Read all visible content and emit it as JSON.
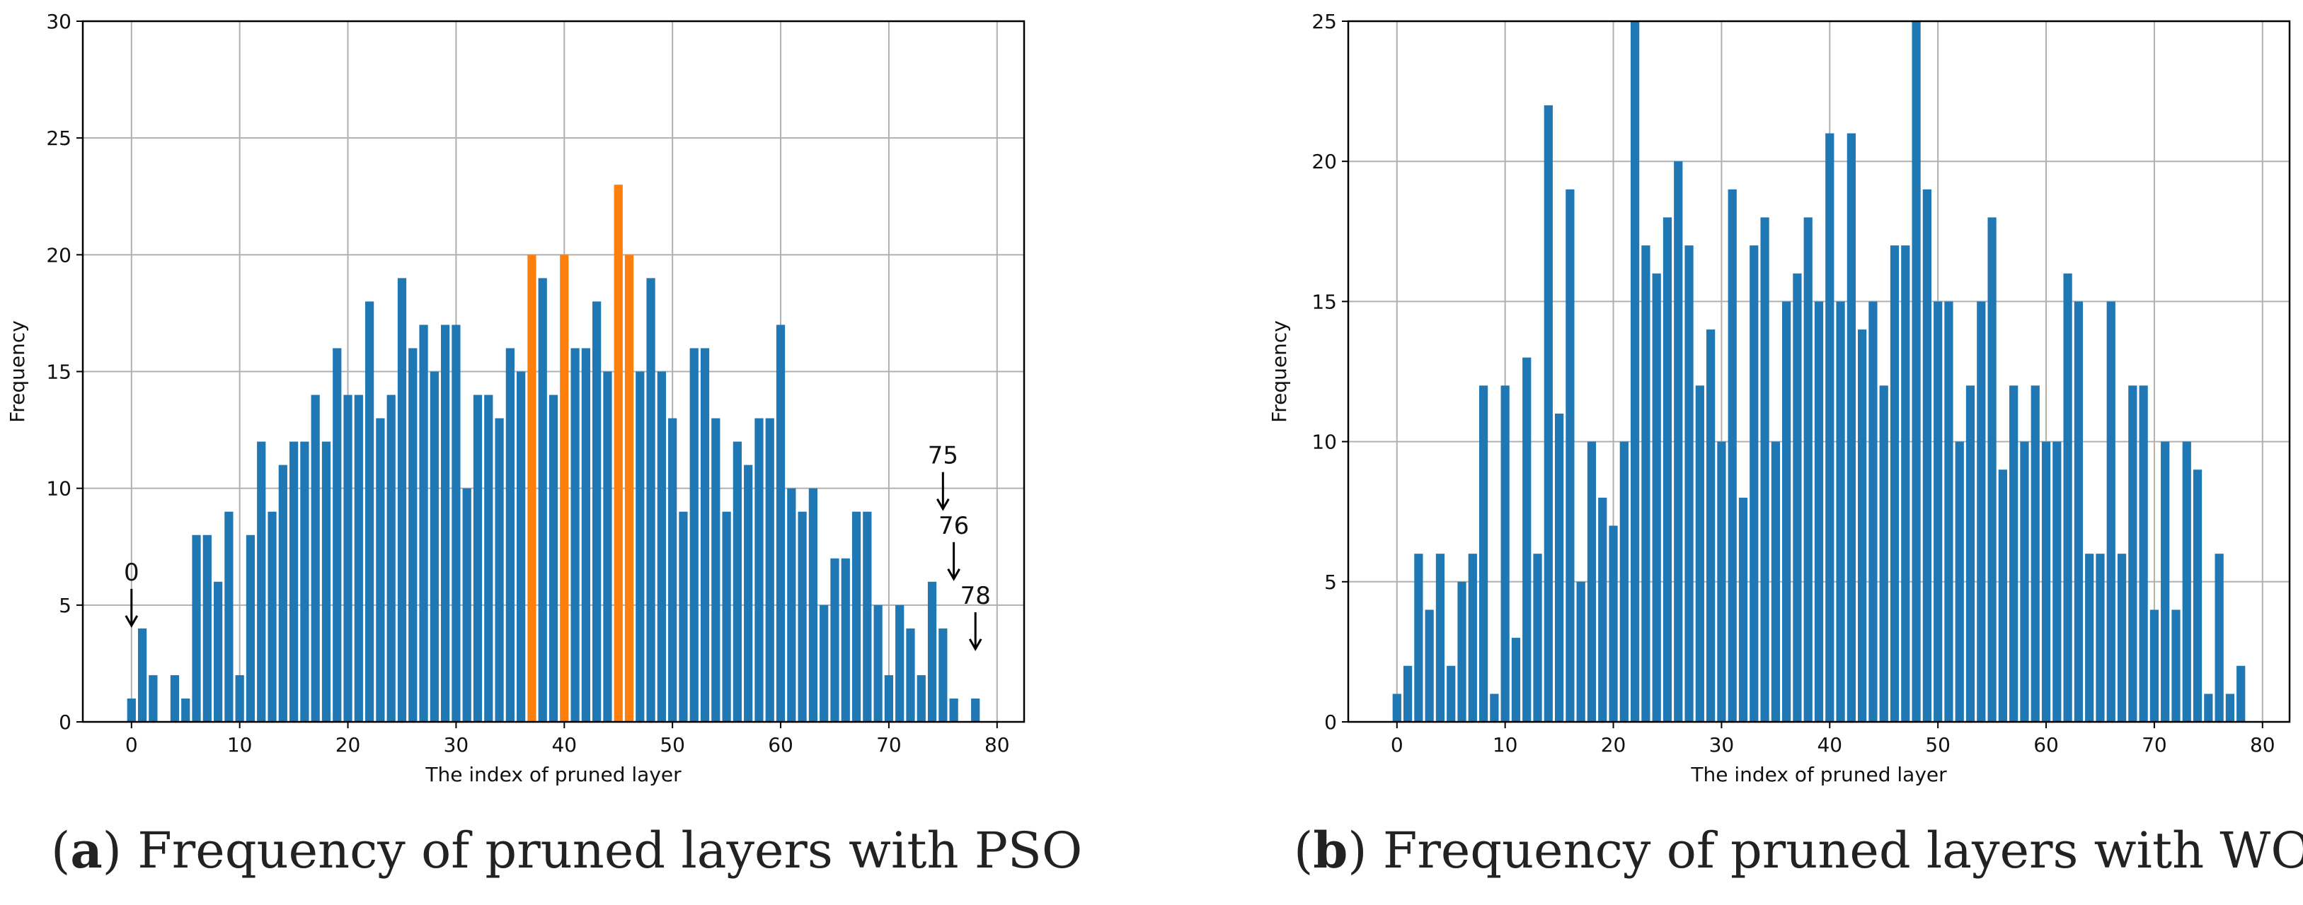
{
  "colors": {
    "bar": "#1f77b4",
    "highlight": "#ff7f0e",
    "grid": "#b0b0b0",
    "axis": "#000000"
  },
  "captions": [
    {
      "letter": "a",
      "text": "Frequency of pruned layers with PSO"
    },
    {
      "letter": "b",
      "text": "Frequency of pruned layers with WOA"
    }
  ],
  "chart_data": [
    {
      "type": "bar",
      "title": "",
      "xlabel": "The index of pruned layer",
      "ylabel": "Frequency",
      "xlim": [
        -4.5,
        82.5
      ],
      "ylim": [
        0,
        30
      ],
      "xticks": [
        0,
        10,
        20,
        30,
        40,
        50,
        60,
        70,
        80
      ],
      "yticks": [
        0,
        5,
        10,
        15,
        20,
        25,
        30
      ],
      "grid": true,
      "x": [
        0,
        1,
        2,
        3,
        4,
        5,
        6,
        7,
        8,
        9,
        10,
        11,
        12,
        13,
        14,
        15,
        16,
        17,
        18,
        19,
        20,
        21,
        22,
        23,
        24,
        25,
        26,
        27,
        28,
        29,
        30,
        31,
        32,
        33,
        34,
        35,
        36,
        37,
        38,
        39,
        40,
        41,
        42,
        43,
        44,
        45,
        46,
        47,
        48,
        49,
        50,
        51,
        52,
        53,
        54,
        55,
        56,
        57,
        58,
        59,
        60,
        61,
        62,
        63,
        64,
        65,
        66,
        67,
        68,
        69,
        70,
        71,
        72,
        73,
        74,
        75,
        76,
        77,
        78
      ],
      "values": [
        1,
        4,
        2,
        0,
        2,
        1,
        8,
        8,
        6,
        9,
        2,
        8,
        12,
        9,
        11,
        12,
        12,
        14,
        12,
        16,
        14,
        14,
        18,
        13,
        14,
        19,
        16,
        17,
        15,
        17,
        17,
        10,
        14,
        14,
        13,
        16,
        15,
        20,
        19,
        14,
        20,
        16,
        16,
        18,
        15,
        23,
        20,
        15,
        19,
        15,
        13,
        9,
        16,
        16,
        13,
        9,
        12,
        11,
        13,
        13,
        17,
        10,
        9,
        10,
        5,
        7,
        7,
        9,
        9,
        5,
        2,
        5,
        4,
        2,
        6,
        4,
        1,
        0,
        1
      ],
      "highlight_x": [
        37,
        40,
        45,
        46
      ],
      "annotations": [
        {
          "text": "0",
          "x": 0,
          "y": 4
        },
        {
          "text": "75",
          "x": 75,
          "y": 9
        },
        {
          "text": "76",
          "x": 76,
          "y": 6
        },
        {
          "text": "78",
          "x": 78,
          "y": 3
        }
      ]
    },
    {
      "type": "bar",
      "title": "",
      "xlabel": "The index of pruned layer",
      "ylabel": "Frequency",
      "xlim": [
        -4.5,
        82.5
      ],
      "ylim": [
        0,
        25
      ],
      "xticks": [
        0,
        10,
        20,
        30,
        40,
        50,
        60,
        70,
        80
      ],
      "yticks": [
        0,
        5,
        10,
        15,
        20,
        25
      ],
      "grid": true,
      "x": [
        0,
        1,
        2,
        3,
        4,
        5,
        6,
        7,
        8,
        9,
        10,
        11,
        12,
        13,
        14,
        15,
        16,
        17,
        18,
        19,
        20,
        21,
        22,
        23,
        24,
        25,
        26,
        27,
        28,
        29,
        30,
        31,
        32,
        33,
        34,
        35,
        36,
        37,
        38,
        39,
        40,
        41,
        42,
        43,
        44,
        45,
        46,
        47,
        48,
        49,
        50,
        51,
        52,
        53,
        54,
        55,
        56,
        57,
        58,
        59,
        60,
        61,
        62,
        63,
        64,
        65,
        66,
        67,
        68,
        69,
        70,
        71,
        72,
        73,
        74,
        75,
        76,
        77,
        78
      ],
      "values": [
        1,
        2,
        6,
        4,
        6,
        2,
        5,
        6,
        12,
        1,
        12,
        3,
        13,
        6,
        22,
        11,
        19,
        5,
        10,
        8,
        7,
        10,
        25,
        17,
        16,
        18,
        20,
        17,
        12,
        14,
        10,
        19,
        8,
        17,
        18,
        10,
        15,
        16,
        18,
        15,
        21,
        15,
        21,
        14,
        15,
        12,
        17,
        17,
        25,
        19,
        15,
        15,
        10,
        12,
        15,
        18,
        9,
        12,
        10,
        12,
        10,
        10,
        16,
        15,
        6,
        6,
        15,
        6,
        12,
        12,
        4,
        10,
        4,
        10,
        9,
        1,
        6,
        1,
        2
      ],
      "highlight_x": [],
      "annotations": []
    }
  ]
}
